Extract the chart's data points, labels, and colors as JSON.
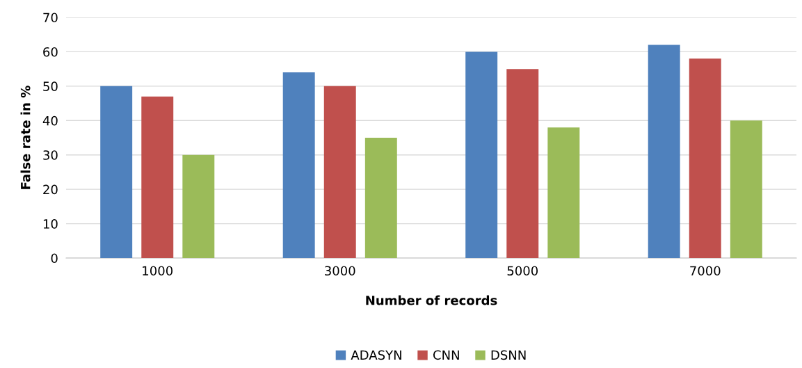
{
  "chart_data": {
    "type": "bar",
    "xlabel": "Number of records",
    "ylabel": "False rate in %",
    "categories": [
      "1000",
      "3000",
      "5000",
      "7000"
    ],
    "series": [
      {
        "name": "ADASYN",
        "color": "#4f81bd",
        "values": [
          50,
          54,
          60,
          62
        ]
      },
      {
        "name": "CNN",
        "color": "#c0504d",
        "values": [
          47,
          50,
          55,
          58
        ]
      },
      {
        "name": "DSNN",
        "color": "#9bbb59",
        "values": [
          30,
          35,
          38,
          40
        ]
      }
    ],
    "ylim": [
      0,
      70
    ],
    "yticks": [
      0,
      10,
      20,
      30,
      40,
      50,
      60,
      70
    ],
    "grid": "y",
    "legend": "bottom"
  }
}
